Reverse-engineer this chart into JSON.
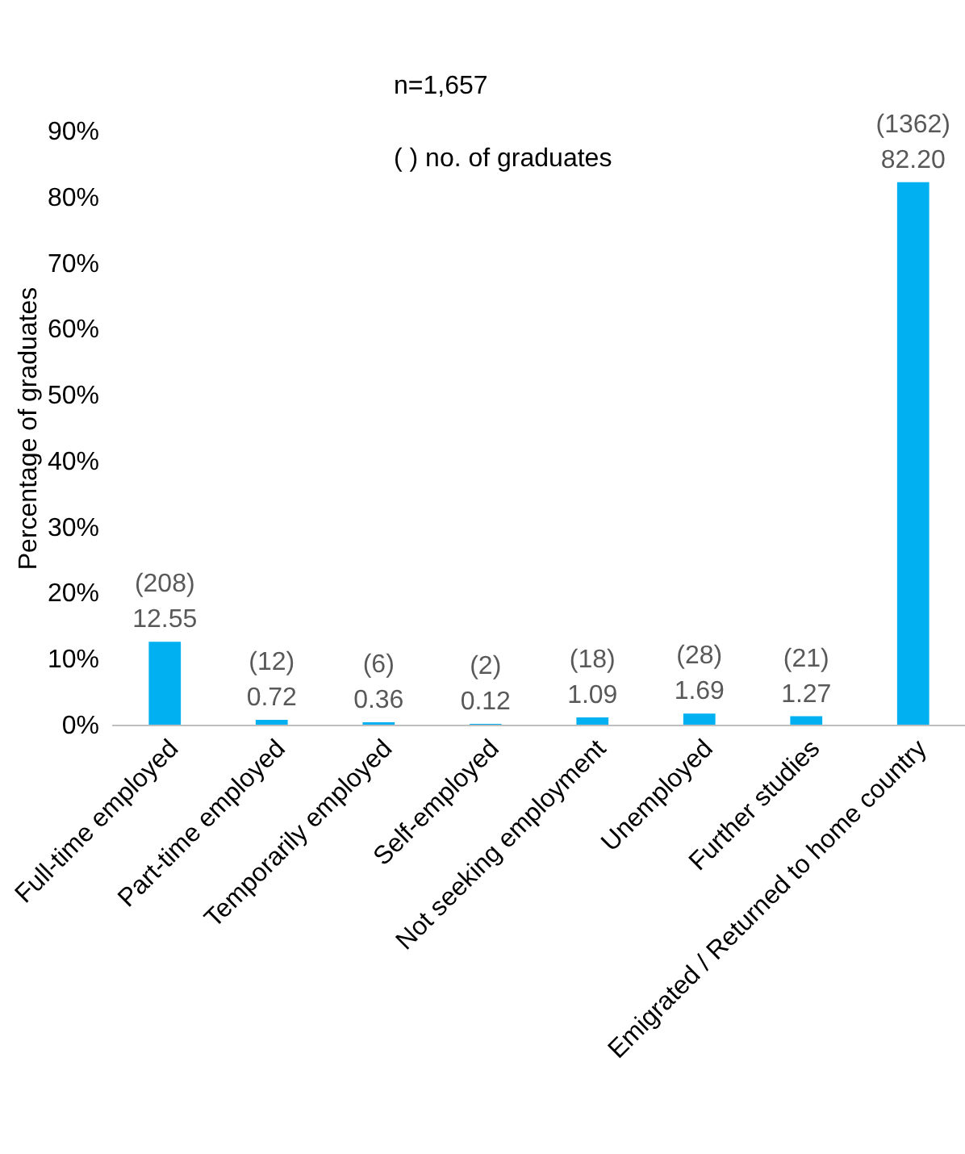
{
  "chart_data": {
    "type": "bar",
    "ylabel": "Percentage of graduates",
    "categories": [
      "Full-time employed",
      "Part-time employed",
      "Temporarily employed",
      "Self-employed",
      "Not seeking employment",
      "Unemployed",
      "Further studies",
      "Emigrated / Returned to home country"
    ],
    "values": [
      12.55,
      0.72,
      0.36,
      0.12,
      1.09,
      1.69,
      1.27,
      82.2
    ],
    "value_labels": [
      "(208)\n12.55",
      "(12)\n0.72",
      "(6)\n0.36",
      "(2)\n0.12",
      "(18)\n1.09",
      "(28)\n1.69",
      "(21)\n1.27",
      "(1362)\n82.20"
    ],
    "color": "#00b0f0",
    "ylim": [
      0,
      90
    ],
    "yticks": [
      {
        "value": 0,
        "label": "0%"
      },
      {
        "value": 10,
        "label": "10%"
      },
      {
        "value": 20,
        "label": "20%"
      },
      {
        "value": 30,
        "label": "30%"
      },
      {
        "value": 40,
        "label": "40%"
      },
      {
        "value": 50,
        "label": "50%"
      },
      {
        "value": 60,
        "label": "60%"
      },
      {
        "value": 70,
        "label": "70%"
      },
      {
        "value": 80,
        "label": "80%"
      },
      {
        "value": 90,
        "label": "90%"
      }
    ],
    "annotations": [
      "n=1,657",
      "( ) no. of graduates"
    ],
    "grid": false
  }
}
